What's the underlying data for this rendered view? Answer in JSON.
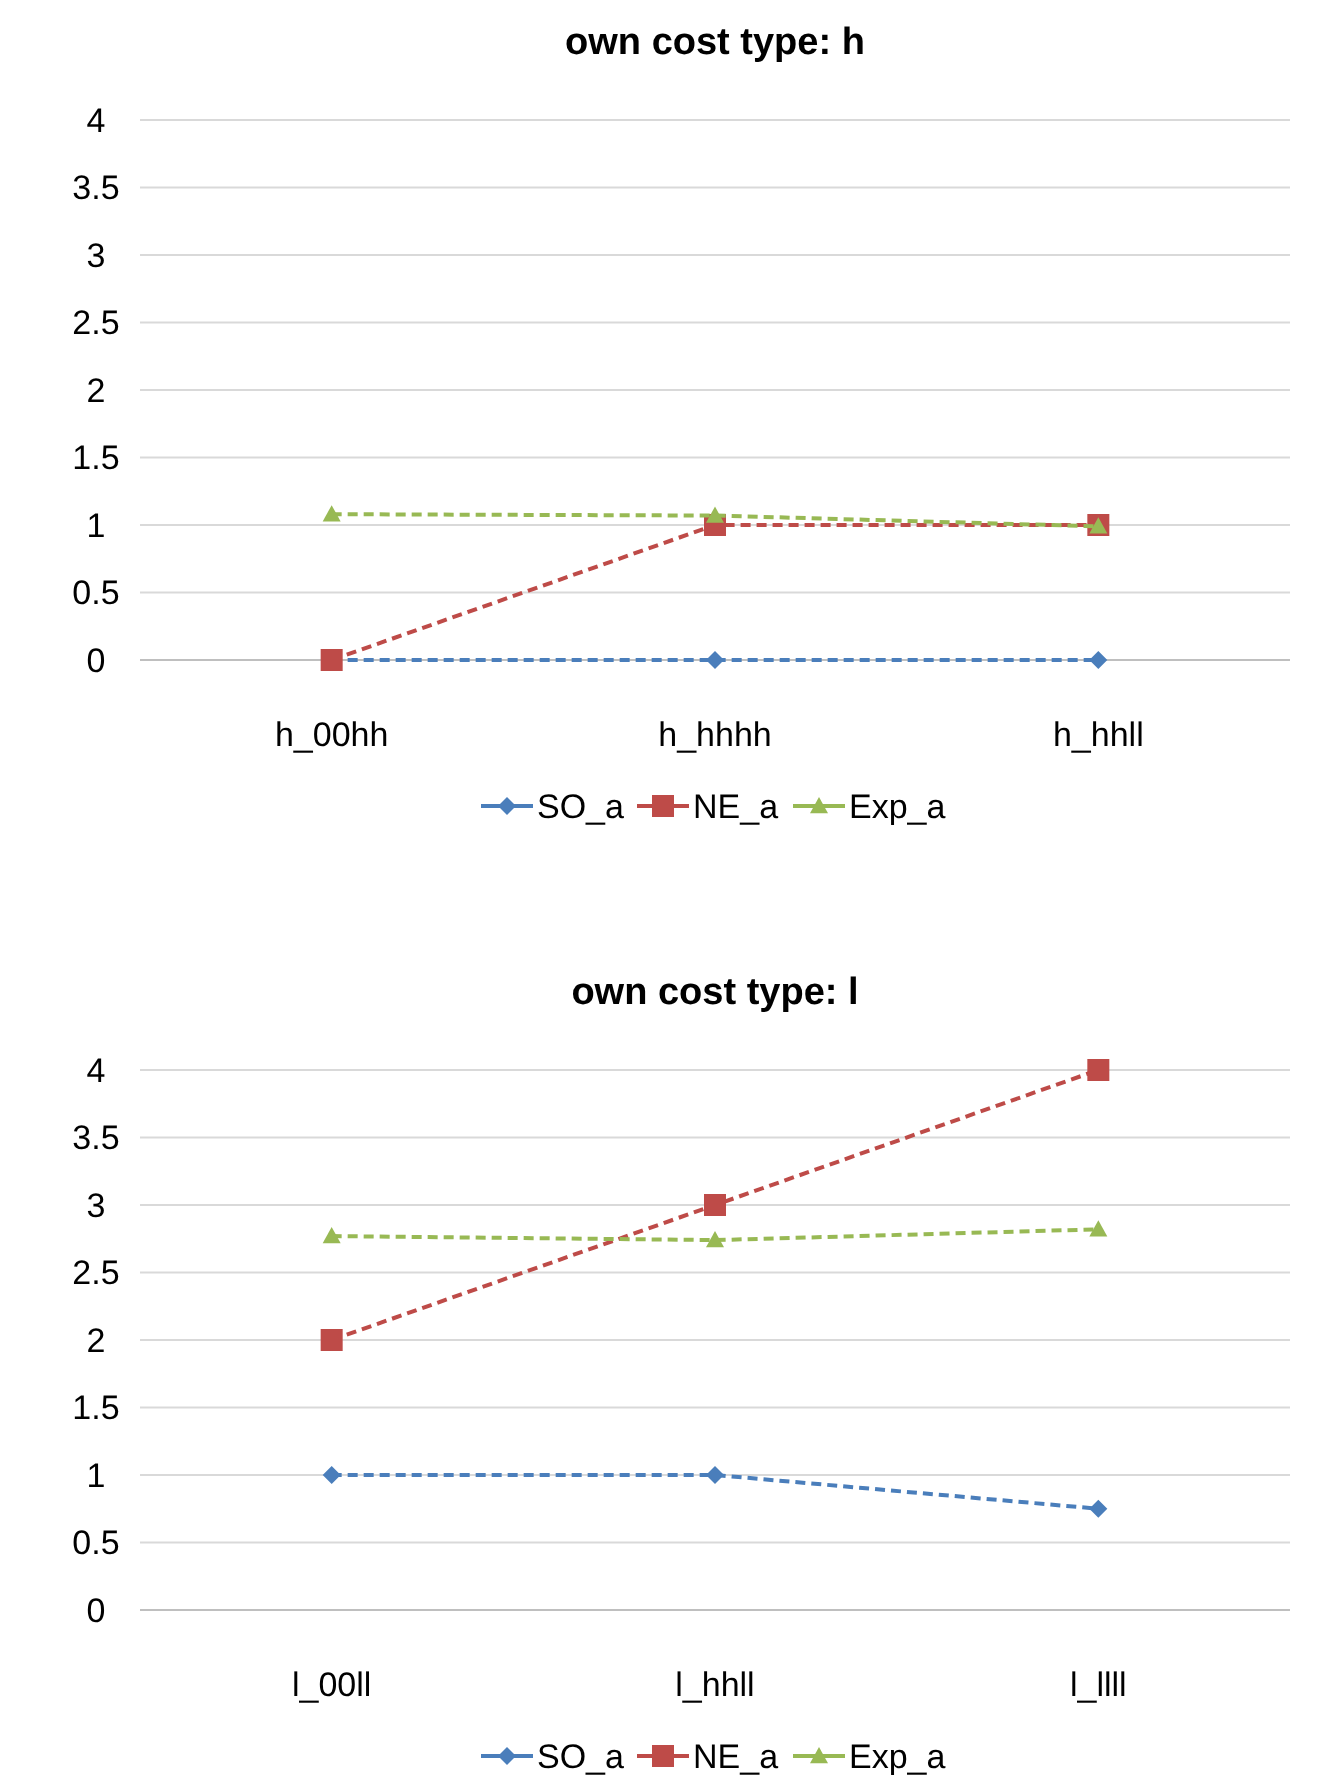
{
  "chart_data": [
    {
      "type": "line",
      "title": "own cost type: h",
      "categories": [
        "h_00hh",
        "h_hhhh",
        "h_hhll"
      ],
      "ylim": [
        0,
        4
      ],
      "yticks": [
        0,
        0.5,
        1,
        1.5,
        2,
        2.5,
        3,
        3.5,
        4
      ],
      "grid": "y",
      "legend": "bottom",
      "line_style": "dashed",
      "series": [
        {
          "name": "SO_a",
          "color": "#4a7ebb",
          "marker": "diamond",
          "values": [
            0,
            0,
            0
          ]
        },
        {
          "name": "NE_a",
          "color": "#be4b48",
          "marker": "square",
          "values": [
            0,
            1,
            1
          ]
        },
        {
          "name": "Exp_a",
          "color": "#98b954",
          "marker": "triangle",
          "values": [
            1.08,
            1.07,
            0.99
          ]
        }
      ]
    },
    {
      "type": "line",
      "title": "own cost type: l",
      "categories": [
        "l_00ll",
        "l_hhll",
        "l_llll"
      ],
      "ylim": [
        0,
        4
      ],
      "yticks": [
        0,
        0.5,
        1,
        1.5,
        2,
        2.5,
        3,
        3.5,
        4
      ],
      "grid": "y",
      "legend": "bottom",
      "line_style": "dashed",
      "series": [
        {
          "name": "SO_a",
          "color": "#4a7ebb",
          "marker": "diamond",
          "values": [
            1,
            1,
            0.75
          ]
        },
        {
          "name": "NE_a",
          "color": "#be4b48",
          "marker": "square",
          "values": [
            2,
            3,
            4
          ]
        },
        {
          "name": "Exp_a",
          "color": "#98b954",
          "marker": "triangle",
          "values": [
            2.77,
            2.74,
            2.82
          ]
        }
      ]
    }
  ]
}
